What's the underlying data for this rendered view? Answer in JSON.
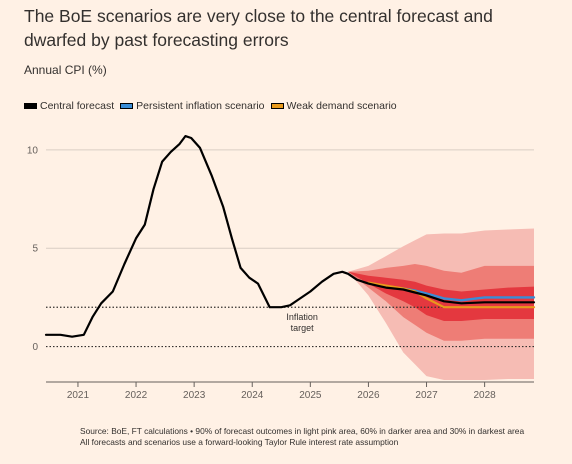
{
  "colors": {
    "background": "#fff1e5",
    "central": "#000000",
    "persistent": "#3a8dd6",
    "weak": "#e89a1c",
    "band90": "#f6bcb4",
    "band60": "#ee7d76",
    "band30": "#e4383f"
  },
  "chart_data": {
    "type": "line",
    "title": "The BoE scenarios are very close to the central forecast and dwarfed by past forecasting errors",
    "ylabel": "Annual CPI (%)",
    "xlim": [
      2020.45,
      2028.85
    ],
    "ylim": [
      -1.8,
      10.5
    ],
    "y_ticks": [
      "10",
      "5",
      "0"
    ],
    "x_ticks": [
      "2021",
      "2022",
      "2023",
      "2024",
      "2025",
      "2026",
      "2027",
      "2028"
    ],
    "inflation_target": 2,
    "annotation": [
      "Inflation",
      "target"
    ],
    "legend": [
      "Central forecast",
      "Persistent inflation scenario",
      "Weak demand scenario"
    ],
    "series": [
      {
        "name": "Central forecast",
        "x": [
          2020.45,
          2020.7,
          2020.9,
          2021.1,
          2021.25,
          2021.4,
          2021.6,
          2021.8,
          2022.0,
          2022.15,
          2022.3,
          2022.45,
          2022.6,
          2022.75,
          2022.85,
          2022.95,
          2023.1,
          2023.3,
          2023.5,
          2023.65,
          2023.8,
          2023.95,
          2024.1,
          2024.3,
          2024.5,
          2024.65,
          2024.8,
          2025.0,
          2025.2,
          2025.4,
          2025.55,
          2025.65,
          2025.8,
          2026.0,
          2026.3,
          2026.6,
          2026.8,
          2027.0,
          2027.3,
          2027.6,
          2028.0,
          2028.4,
          2028.85
        ],
        "y": [
          0.6,
          0.6,
          0.5,
          0.6,
          1.5,
          2.2,
          2.8,
          4.2,
          5.5,
          6.2,
          8.0,
          9.4,
          9.9,
          10.3,
          10.7,
          10.6,
          10.1,
          8.7,
          7.1,
          5.5,
          4.0,
          3.5,
          3.2,
          2.0,
          2.0,
          2.1,
          2.4,
          2.8,
          3.3,
          3.7,
          3.8,
          3.7,
          3.4,
          3.2,
          3.0,
          2.9,
          2.75,
          2.6,
          2.3,
          2.2,
          2.25,
          2.25,
          2.25
        ]
      },
      {
        "name": "Persistent inflation scenario",
        "x": [
          2026.3,
          2026.6,
          2026.8,
          2027.0,
          2027.3,
          2027.6,
          2028.0,
          2028.4,
          2028.85
        ],
        "y": [
          3.05,
          2.95,
          2.85,
          2.7,
          2.45,
          2.35,
          2.5,
          2.5,
          2.5
        ]
      },
      {
        "name": "Weak demand scenario",
        "x": [
          2026.0,
          2026.3,
          2026.6,
          2026.8,
          2027.0,
          2027.3,
          2027.6,
          2028.0,
          2028.4,
          2028.85
        ],
        "y": [
          3.25,
          3.1,
          2.95,
          2.8,
          2.45,
          2.0,
          2.0,
          2.0,
          2.0,
          2.0
        ]
      }
    ],
    "fan_x": [
      2025.65,
      2026.0,
      2026.3,
      2026.6,
      2026.8,
      2027.0,
      2027.3,
      2027.6,
      2028.0,
      2028.4,
      2028.85
    ],
    "fan_90": {
      "upper": [
        3.8,
        4.1,
        4.6,
        5.1,
        5.4,
        5.7,
        5.75,
        5.75,
        5.9,
        5.95,
        6.0
      ],
      "lower": [
        3.8,
        2.6,
        1.2,
        -0.3,
        -0.9,
        -1.5,
        -1.7,
        -1.7,
        -1.7,
        -1.65,
        -1.65
      ]
    },
    "fan_60": {
      "upper": [
        3.8,
        3.85,
        4.0,
        4.1,
        4.2,
        4.1,
        3.85,
        3.75,
        4.1,
        4.1,
        4.1
      ],
      "lower": [
        3.8,
        3.0,
        2.3,
        1.5,
        1.1,
        0.7,
        0.3,
        0.3,
        0.4,
        0.4,
        0.4
      ]
    },
    "fan_30": {
      "upper": [
        3.8,
        3.6,
        3.5,
        3.4,
        3.3,
        3.1,
        2.9,
        2.8,
        2.9,
        3.0,
        3.05
      ],
      "lower": [
        3.8,
        3.2,
        2.7,
        2.3,
        2.0,
        1.6,
        1.3,
        1.3,
        1.4,
        1.4,
        1.4
      ]
    },
    "source": [
      "Source: BoE, FT calculations • 90% of forecast outcomes in light pink area, 60% in darker area and 30% in darkest area",
      "All forecasts and scenarios use a forward-looking Taylor Rule interest rate assumption"
    ]
  }
}
